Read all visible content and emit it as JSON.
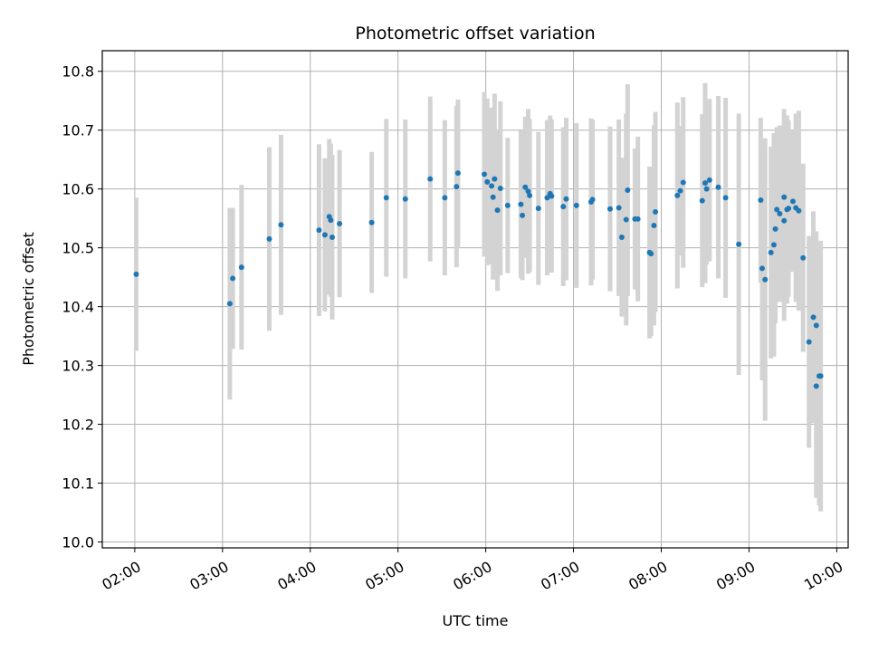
{
  "chart_data": {
    "type": "scatter",
    "title": "Photometric offset variation",
    "xlabel": "UTC time",
    "ylabel": "Photometric offset",
    "x_tick_labels": [
      "02:00",
      "03:00",
      "04:00",
      "05:00",
      "06:00",
      "07:00",
      "08:00",
      "09:00",
      "10:00"
    ],
    "x_tick_hours": [
      2,
      3,
      4,
      5,
      6,
      7,
      8,
      9,
      10
    ],
    "y_ticks": [
      10.0,
      10.1,
      10.2,
      10.3,
      10.4,
      10.5,
      10.6,
      10.7,
      10.8
    ],
    "y_tick_labels": [
      "10.0",
      "10.1",
      "10.2",
      "10.3",
      "10.4",
      "10.5",
      "10.6",
      "10.7",
      "10.8"
    ],
    "xlim_hours": [
      1.63,
      10.13
    ],
    "ylim": [
      9.99,
      10.835
    ],
    "grid": true,
    "point_color": "#1f77b4",
    "errorbar_color": "#d3d3d3",
    "series": [
      {
        "x": [
          "02:01",
          "03:05",
          "03:07",
          "03:13",
          "03:32",
          "03:40",
          "04:06",
          "04:10",
          "04:13",
          "04:14",
          "04:15",
          "04:20",
          "04:42",
          "04:52",
          "05:05",
          "05:22",
          "05:32",
          "05:40",
          "05:41",
          "05:59",
          "06:01",
          "06:04",
          "06:05",
          "06:06",
          "06:08",
          "06:10",
          "06:15",
          "06:24",
          "06:25",
          "06:27",
          "06:29",
          "06:30",
          "06:36",
          "06:42",
          "06:44",
          "06:45",
          "06:53",
          "06:55",
          "07:02",
          "07:12",
          "07:13",
          "07:25",
          "07:31",
          "07:33",
          "07:36",
          "07:37",
          "07:42",
          "07:44",
          "07:52",
          "07:53",
          "07:55",
          "07:56",
          "08:11",
          "08:13",
          "08:15",
          "08:28",
          "08:30",
          "08:31",
          "08:33",
          "08:39",
          "08:44",
          "08:53",
          "09:08",
          "09:09",
          "09:11",
          "09:15",
          "09:17",
          "09:18",
          "09:19",
          "09:21",
          "09:24",
          "09:24",
          "09:26",
          "09:27",
          "09:30",
          "09:32",
          "09:34",
          "09:37",
          "09:41",
          "09:44",
          "09:46",
          "09:46",
          "09:48",
          "09:49"
        ],
        "y": [
          10.455,
          10.405,
          10.448,
          10.467,
          10.515,
          10.539,
          10.53,
          10.522,
          10.553,
          10.547,
          10.518,
          10.541,
          10.543,
          10.585,
          10.583,
          10.617,
          10.585,
          10.604,
          10.627,
          10.625,
          10.612,
          10.605,
          10.586,
          10.617,
          10.564,
          10.601,
          10.572,
          10.574,
          10.555,
          10.603,
          10.596,
          10.589,
          10.567,
          10.585,
          10.592,
          10.588,
          10.57,
          10.583,
          10.572,
          10.578,
          10.582,
          10.566,
          10.568,
          10.518,
          10.548,
          10.598,
          10.549,
          10.549,
          10.492,
          10.49,
          10.538,
          10.561,
          10.589,
          10.597,
          10.611,
          10.58,
          10.61,
          10.6,
          10.615,
          10.603,
          10.585,
          10.506,
          10.581,
          10.465,
          10.446,
          10.492,
          10.505,
          10.532,
          10.565,
          10.558,
          10.586,
          10.546,
          10.565,
          10.567,
          10.579,
          10.568,
          10.563,
          10.483,
          10.34,
          10.382,
          10.368,
          10.265,
          10.282,
          10.282
        ],
        "yerr": [
          0.13,
          0.163,
          0.12,
          0.14,
          0.156,
          0.153,
          0.146,
          0.13,
          0.132,
          0.13,
          0.14,
          0.125,
          0.12,
          0.134,
          0.135,
          0.14,
          0.132,
          0.137,
          0.125,
          0.14,
          0.142,
          0.133,
          0.14,
          0.145,
          0.137,
          0.148,
          0.115,
          0.125,
          0.11,
          0.12,
          0.14,
          0.13,
          0.13,
          0.132,
          0.133,
          0.13,
          0.135,
          0.138,
          0.14,
          0.142,
          0.136,
          0.14,
          0.15,
          0.135,
          0.18,
          0.18,
          0.12,
          0.14,
          0.146,
          0.14,
          0.17,
          0.17,
          0.158,
          0.11,
          0.145,
          0.147,
          0.17,
          0.128,
          0.138,
          0.155,
          0.17,
          0.222,
          0.14,
          0.19,
          0.24,
          0.18,
          0.19,
          0.16,
          0.14,
          0.15,
          0.15,
          0.17,
          0.16,
          0.15,
          0.12,
          0.16,
          0.17,
          0.16,
          0.18,
          0.18,
          0.16,
          0.19,
          0.22,
          0.23
        ]
      }
    ]
  }
}
